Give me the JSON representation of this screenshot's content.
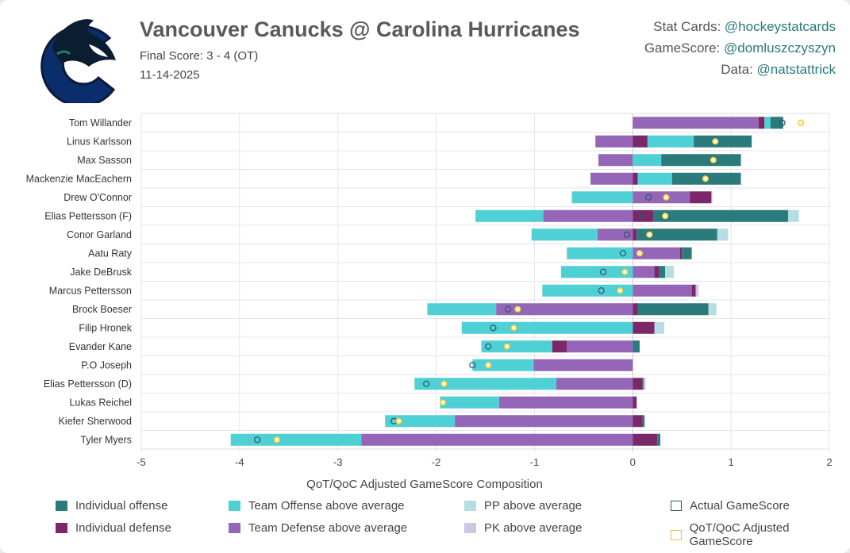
{
  "header": {
    "title": "Vancouver Canucks @ Carolina Hurricanes",
    "final_score": "Final Score: 3 - 4 (OT)",
    "date": "11-14-2025",
    "credits": [
      {
        "label": "Stat Cards: ",
        "handle": "@hockeystatcards"
      },
      {
        "label": "GameScore: ",
        "handle": "@domluszczyszyn"
      },
      {
        "label": "Data: ",
        "handle": "@natstattrick"
      }
    ]
  },
  "colors": {
    "IO": "#2b7a7c",
    "ID": "#7a2868",
    "TO": "#4fd0d4",
    "TD": "#9565b8",
    "PP": "#b5dde3",
    "PK": "#c9c9e2",
    "actual": "#2c5b6a",
    "adjusted": "#f0c23a"
  },
  "chart_data": {
    "type": "bar",
    "orientation": "horizontal-stacked",
    "xlabel": "QoT/QoC Adjusted GameScore Composition",
    "xlim": [
      -5,
      2
    ],
    "xticks": [
      -5,
      -4,
      -3,
      -2,
      -1,
      0,
      1,
      2
    ],
    "grid": true,
    "legend_position": "bottom",
    "legend": [
      {
        "key": "IO",
        "label": "Individual offense"
      },
      {
        "key": "TO",
        "label": "Team Offense above average"
      },
      {
        "key": "PP",
        "label": "PP above average"
      },
      {
        "key": "actual",
        "label": "Actual GameScore"
      },
      {
        "key": "ID",
        "label": "Individual defense"
      },
      {
        "key": "TD",
        "label": "Team Defense above average"
      },
      {
        "key": "PK",
        "label": "PK above average"
      },
      {
        "key": "adjusted",
        "label": "QoT/QoC Adjusted GameScore"
      }
    ],
    "players": [
      {
        "name": "Tom Willander",
        "TD": 1.28,
        "ID": 0.06,
        "TO": 0.06,
        "IO": 0.13,
        "PP": 0,
        "PK": 0,
        "actual": 1.52,
        "adjusted": 1.71
      },
      {
        "name": "Linus Karlsson",
        "TD": -0.38,
        "ID": 0.15,
        "TO": 0.47,
        "IO": 0.59,
        "PP": 0,
        "PK": 0,
        "actual": 0.84,
        "adjusted": 0.84
      },
      {
        "name": "Max Sasson",
        "TD": -0.35,
        "ID": 0,
        "TO": 0.29,
        "IO": 0.81,
        "PP": 0,
        "PK": 0,
        "actual": 0.82,
        "adjusted": 0.82
      },
      {
        "name": "Mackenzie MacEachern",
        "TD": -0.43,
        "ID": 0.05,
        "TO": 0.35,
        "IO": 0.7,
        "PP": 0,
        "PK": 0,
        "actual": 0.74,
        "adjusted": 0.74
      },
      {
        "name": "Drew O'Connor",
        "TD": 0.58,
        "ID": 0.22,
        "TO": -0.62,
        "IO": 0,
        "PP": 0,
        "PK": 0.01,
        "actual": 0.16,
        "adjusted": 0.34
      },
      {
        "name": "Elias Pettersson (F)",
        "TD": -0.91,
        "ID": 0.21,
        "TO": -0.69,
        "IO": 1.37,
        "PP": 0.11,
        "PK": 0,
        "actual": 0.09,
        "adjusted": 0.33
      },
      {
        "name": "Conor Garland",
        "TD": -0.36,
        "ID": 0.04,
        "TO": -0.67,
        "IO": 0.82,
        "PP": 0.11,
        "PK": 0,
        "actual": -0.06,
        "adjusted": 0.17
      },
      {
        "name": "Aatu Raty",
        "TD": 0.48,
        "ID": 0.02,
        "TO": -0.67,
        "IO": 0.1,
        "PP": 0,
        "PK": 0,
        "actual": -0.1,
        "adjusted": 0.07
      },
      {
        "name": "Jake DeBrusk",
        "TD": 0.22,
        "ID": 0.05,
        "TO": -0.73,
        "IO": 0.06,
        "PP": 0.09,
        "PK": 0,
        "actual": -0.3,
        "adjusted": -0.08
      },
      {
        "name": "Marcus Pettersson",
        "TD": 0.6,
        "ID": 0.04,
        "TO": -0.92,
        "IO": 0,
        "PP": 0,
        "PK": 0.03,
        "actual": -0.32,
        "adjusted": -0.13
      },
      {
        "name": "Brock Boeser",
        "TD": -1.39,
        "ID": 0.05,
        "TO": -0.7,
        "IO": 0.72,
        "PP": 0.08,
        "PK": 0,
        "actual": -1.27,
        "adjusted": -1.17
      },
      {
        "name": "Filip Hronek",
        "TD": 0,
        "ID": 0.22,
        "TO": -1.74,
        "IO": 0,
        "PP": 0.1,
        "PK": 0,
        "actual": -1.42,
        "adjusted": -1.21
      },
      {
        "name": "Evander Kane",
        "TD": -0.67,
        "ID": -0.15,
        "TO": -0.72,
        "IO": 0.07,
        "PP": 0,
        "PK": 0,
        "actual": -1.47,
        "adjusted": -1.28
      },
      {
        "name": "P.O Joseph",
        "TD": -1.01,
        "ID": 0,
        "TO": -0.62,
        "IO": 0,
        "PP": 0,
        "PK": 0,
        "actual": -1.63,
        "adjusted": -1.47
      },
      {
        "name": "Elias Pettersson (D)",
        "TD": -0.78,
        "ID": 0.1,
        "TO": -1.44,
        "IO": 0.01,
        "PP": 0,
        "PK": 0.02,
        "actual": -2.1,
        "adjusted": -1.92
      },
      {
        "name": "Lukas Reichel",
        "TD": -1.36,
        "ID": 0.04,
        "TO": -0.6,
        "IO": 0,
        "PP": 0,
        "PK": 0,
        "actual": -1.93,
        "adjusted": -1.93
      },
      {
        "name": "Kiefer Sherwood",
        "TD": -1.81,
        "ID": 0.1,
        "TO": -0.71,
        "IO": 0.02,
        "PP": 0,
        "PK": 0,
        "actual": -2.43,
        "adjusted": -2.38
      },
      {
        "name": "Tyler Myers",
        "TD": -2.76,
        "ID": 0.25,
        "TO": -1.33,
        "IO": 0.03,
        "PP": 0,
        "PK": 0,
        "actual": -3.82,
        "adjusted": -3.62
      }
    ]
  }
}
